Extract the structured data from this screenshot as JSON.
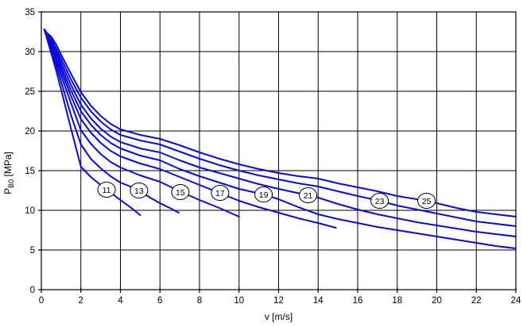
{
  "figure": {
    "background": "#ffffff"
  },
  "chart_data": {
    "type": "line",
    "title": "",
    "xlabel": "v [m/s]",
    "ylabel": "P_B0 [MPa]",
    "ylabel_parts": {
      "base": "P",
      "sub": "B0",
      "rest": " [MPa]"
    },
    "xlim": [
      0,
      24
    ],
    "ylim": [
      0,
      35
    ],
    "xticks": [
      0,
      2,
      4,
      6,
      8,
      10,
      12,
      14,
      16,
      18,
      20,
      22,
      24
    ],
    "yticks": [
      0,
      5,
      10,
      15,
      20,
      25,
      30,
      35
    ],
    "grid": true,
    "legend_position": "none",
    "axis_color": "#000000",
    "grid_color": "#000000",
    "line_color": "#0a0ae0",
    "label_circle_fill": "#ffffff",
    "label_circle_stroke": "#000000",
    "series": [
      {
        "name": "11",
        "label_at": [
          3.3,
          12.6
        ],
        "points": [
          [
            0.15,
            32.8
          ],
          [
            0.3,
            31.5
          ],
          [
            0.5,
            29.8
          ],
          [
            0.75,
            27.6
          ],
          [
            1,
            25.2
          ],
          [
            1.5,
            20.3
          ],
          [
            2,
            15.5
          ],
          [
            2.5,
            14.2
          ],
          [
            3,
            13.2
          ],
          [
            3.3,
            12.6
          ],
          [
            4,
            11.3
          ],
          [
            4.5,
            10.4
          ],
          [
            5,
            9.4
          ]
        ]
      },
      {
        "name": "13",
        "label_at": [
          4.94,
          12.5
        ],
        "points": [
          [
            0.15,
            32.8
          ],
          [
            0.3,
            31.7
          ],
          [
            0.5,
            30.2
          ],
          [
            0.75,
            28.3
          ],
          [
            1,
            26.2
          ],
          [
            1.5,
            22.0
          ],
          [
            2,
            18.3
          ],
          [
            2.5,
            16.5
          ],
          [
            3,
            15.3
          ],
          [
            3.5,
            14.3
          ],
          [
            4,
            13.5
          ],
          [
            4.5,
            13.0
          ],
          [
            4.94,
            12.5
          ],
          [
            5.5,
            11.6
          ],
          [
            6,
            10.9
          ],
          [
            6.5,
            10.3
          ],
          [
            6.95,
            9.7
          ]
        ]
      },
      {
        "name": "15",
        "label_at": [
          7.03,
          12.3
        ],
        "points": [
          [
            0.15,
            32.8
          ],
          [
            0.3,
            31.8
          ],
          [
            0.5,
            30.5
          ],
          [
            0.75,
            28.8
          ],
          [
            1,
            27.0
          ],
          [
            1.5,
            23.5
          ],
          [
            2,
            20.1
          ],
          [
            2.5,
            18.4
          ],
          [
            3,
            17.1
          ],
          [
            3.5,
            16.1
          ],
          [
            4,
            15.4
          ],
          [
            5,
            14.4
          ],
          [
            6,
            13.6
          ],
          [
            7,
            12.4
          ],
          [
            8,
            11.3
          ],
          [
            9,
            10.3
          ],
          [
            10,
            9.2
          ]
        ]
      },
      {
        "name": "17",
        "label_at": [
          9.04,
          12.2
        ],
        "points": [
          [
            0.15,
            32.8
          ],
          [
            0.3,
            31.9
          ],
          [
            0.5,
            30.8
          ],
          [
            0.75,
            29.2
          ],
          [
            1,
            27.6
          ],
          [
            1.5,
            24.4
          ],
          [
            2,
            21.5
          ],
          [
            2.5,
            19.8
          ],
          [
            3,
            18.5
          ],
          [
            3.5,
            17.5
          ],
          [
            4,
            16.8
          ],
          [
            5,
            15.9
          ],
          [
            6,
            15.2
          ],
          [
            7,
            14.2
          ],
          [
            8,
            13.2
          ],
          [
            9,
            12.2
          ],
          [
            10,
            11.2
          ],
          [
            11,
            10.4
          ],
          [
            12,
            9.7
          ],
          [
            13,
            9.0
          ],
          [
            14,
            8.4
          ],
          [
            14.9,
            7.8
          ]
        ]
      },
      {
        "name": "19",
        "label_at": [
          11.24,
          12.0
        ],
        "points": [
          [
            0.15,
            32.8
          ],
          [
            0.3,
            32.0
          ],
          [
            0.5,
            31.0
          ],
          [
            0.75,
            29.6
          ],
          [
            1,
            28.1
          ],
          [
            1.5,
            25.1
          ],
          [
            2,
            22.5
          ],
          [
            2.5,
            20.8
          ],
          [
            3,
            19.5
          ],
          [
            3.5,
            18.5
          ],
          [
            4,
            17.8
          ],
          [
            5,
            16.9
          ],
          [
            6,
            16.3
          ],
          [
            7,
            15.2
          ],
          [
            8,
            14.3
          ],
          [
            9,
            13.5
          ],
          [
            10,
            12.7
          ],
          [
            11.24,
            12.0
          ],
          [
            12,
            11.4
          ],
          [
            13,
            10.4
          ],
          [
            14,
            9.5
          ],
          [
            15,
            8.9
          ],
          [
            16,
            8.4
          ],
          [
            17,
            7.9
          ],
          [
            18,
            7.5
          ],
          [
            19,
            7.1
          ],
          [
            20,
            6.7
          ],
          [
            21,
            6.3
          ],
          [
            22,
            5.9
          ],
          [
            23,
            5.5
          ],
          [
            24,
            5.2
          ]
        ]
      },
      {
        "name": "21",
        "label_at": [
          13.49,
          11.9
        ],
        "points": [
          [
            0.15,
            32.8
          ],
          [
            0.3,
            32.1
          ],
          [
            0.5,
            31.3
          ],
          [
            0.75,
            30.0
          ],
          [
            1,
            28.6
          ],
          [
            1.5,
            25.8
          ],
          [
            2,
            23.3
          ],
          [
            2.5,
            21.6
          ],
          [
            3,
            20.3
          ],
          [
            3.5,
            19.3
          ],
          [
            4,
            18.6
          ],
          [
            5,
            17.8
          ],
          [
            6,
            17.3
          ],
          [
            7,
            16.3
          ],
          [
            8,
            15.4
          ],
          [
            9,
            14.7
          ],
          [
            10,
            14.0
          ],
          [
            11,
            13.3
          ],
          [
            12,
            12.7
          ],
          [
            13.49,
            11.9
          ],
          [
            14,
            11.6
          ],
          [
            15,
            10.8
          ],
          [
            16,
            10.1
          ],
          [
            17,
            9.5
          ],
          [
            18,
            9.0
          ],
          [
            19,
            8.5
          ],
          [
            20,
            8.1
          ],
          [
            21,
            7.7
          ],
          [
            22,
            7.3
          ],
          [
            23,
            7.0
          ],
          [
            24,
            6.7
          ]
        ]
      },
      {
        "name": "23",
        "label_at": [
          17.11,
          11.2
        ],
        "points": [
          [
            0.15,
            32.8
          ],
          [
            0.3,
            32.2
          ],
          [
            0.5,
            31.6
          ],
          [
            0.75,
            30.4
          ],
          [
            1,
            29.1
          ],
          [
            1.5,
            26.5
          ],
          [
            2,
            24.2
          ],
          [
            2.5,
            22.5
          ],
          [
            3,
            21.2
          ],
          [
            3.5,
            20.2
          ],
          [
            4,
            19.5
          ],
          [
            5,
            18.8
          ],
          [
            6,
            18.3
          ],
          [
            7,
            17.4
          ],
          [
            8,
            16.5
          ],
          [
            9,
            15.7
          ],
          [
            10,
            15.0
          ],
          [
            11,
            14.4
          ],
          [
            12,
            13.9
          ],
          [
            13,
            13.4
          ],
          [
            14,
            13.0
          ],
          [
            15,
            12.4
          ],
          [
            16,
            11.8
          ],
          [
            17.11,
            11.2
          ],
          [
            18,
            10.6
          ],
          [
            19,
            10.1
          ],
          [
            20,
            9.6
          ],
          [
            21,
            9.1
          ],
          [
            22,
            8.6
          ],
          [
            23,
            8.3
          ],
          [
            24,
            8.0
          ]
        ]
      },
      {
        "name": "25",
        "label_at": [
          19.48,
          11.2
        ],
        "points": [
          [
            0.15,
            32.8
          ],
          [
            0.3,
            32.3
          ],
          [
            0.5,
            31.9
          ],
          [
            0.75,
            30.9
          ],
          [
            1,
            29.6
          ],
          [
            1.5,
            27.2
          ],
          [
            2,
            24.9
          ],
          [
            2.5,
            23.2
          ],
          [
            3,
            21.9
          ],
          [
            3.5,
            20.9
          ],
          [
            4,
            20.2
          ],
          [
            5,
            19.5
          ],
          [
            6,
            19.0
          ],
          [
            7,
            18.2
          ],
          [
            8,
            17.3
          ],
          [
            9,
            16.5
          ],
          [
            10,
            15.8
          ],
          [
            11,
            15.2
          ],
          [
            12,
            14.7
          ],
          [
            13,
            14.3
          ],
          [
            14,
            14.0
          ],
          [
            15,
            13.4
          ],
          [
            16,
            12.9
          ],
          [
            17,
            12.4
          ],
          [
            18,
            11.8
          ],
          [
            19.48,
            11.2
          ],
          [
            20,
            10.9
          ],
          [
            21,
            10.3
          ],
          [
            22,
            9.8
          ],
          [
            23,
            9.5
          ],
          [
            24,
            9.2
          ]
        ]
      }
    ]
  }
}
